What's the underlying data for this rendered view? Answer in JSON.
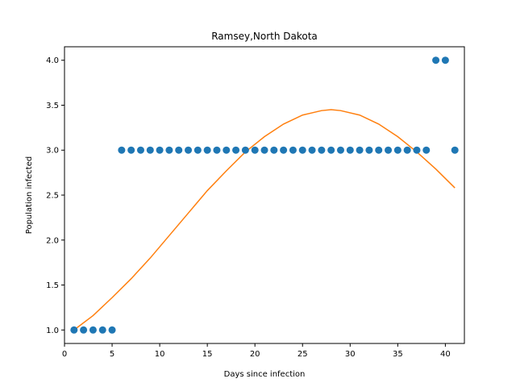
{
  "chart_data": {
    "type": "scatter",
    "title": "Ramsey,North Dakota",
    "xlabel": "Days since infection",
    "ylabel": "Population infected",
    "xlim": [
      -0.0,
      42.0
    ],
    "ylim": [
      0.85,
      4.15
    ],
    "xticks": [
      0,
      5,
      10,
      15,
      20,
      25,
      30,
      35,
      40
    ],
    "yticks": [
      1.0,
      1.5,
      2.0,
      2.5,
      3.0,
      3.5,
      4.0
    ],
    "grid": false,
    "series": [
      {
        "kind": "scatter",
        "color": "#1f77b4",
        "points": [
          [
            1,
            1
          ],
          [
            2,
            1
          ],
          [
            3,
            1
          ],
          [
            4,
            1
          ],
          [
            5,
            1
          ],
          [
            6,
            3
          ],
          [
            7,
            3
          ],
          [
            8,
            3
          ],
          [
            9,
            3
          ],
          [
            10,
            3
          ],
          [
            11,
            3
          ],
          [
            12,
            3
          ],
          [
            13,
            3
          ],
          [
            14,
            3
          ],
          [
            15,
            3
          ],
          [
            16,
            3
          ],
          [
            17,
            3
          ],
          [
            18,
            3
          ],
          [
            19,
            3
          ],
          [
            20,
            3
          ],
          [
            21,
            3
          ],
          [
            22,
            3
          ],
          [
            23,
            3
          ],
          [
            24,
            3
          ],
          [
            25,
            3
          ],
          [
            26,
            3
          ],
          [
            27,
            3
          ],
          [
            28,
            3
          ],
          [
            29,
            3
          ],
          [
            30,
            3
          ],
          [
            31,
            3
          ],
          [
            32,
            3
          ],
          [
            33,
            3
          ],
          [
            34,
            3
          ],
          [
            35,
            3
          ],
          [
            36,
            3
          ],
          [
            37,
            3
          ],
          [
            38,
            3
          ],
          [
            39,
            4
          ],
          [
            40,
            4
          ],
          [
            41,
            3
          ]
        ]
      },
      {
        "kind": "line",
        "color": "#ff7f0e",
        "points": [
          [
            1,
            1.0
          ],
          [
            3,
            1.16
          ],
          [
            5,
            1.36
          ],
          [
            7,
            1.57
          ],
          [
            9,
            1.8
          ],
          [
            11,
            2.05
          ],
          [
            13,
            2.3
          ],
          [
            15,
            2.55
          ],
          [
            17,
            2.77
          ],
          [
            19,
            2.98
          ],
          [
            21,
            3.15
          ],
          [
            23,
            3.29
          ],
          [
            25,
            3.39
          ],
          [
            27,
            3.44
          ],
          [
            28,
            3.45
          ],
          [
            29,
            3.44
          ],
          [
            31,
            3.39
          ],
          [
            33,
            3.29
          ],
          [
            35,
            3.15
          ],
          [
            37,
            2.98
          ],
          [
            39,
            2.79
          ],
          [
            41,
            2.58
          ]
        ]
      }
    ]
  }
}
